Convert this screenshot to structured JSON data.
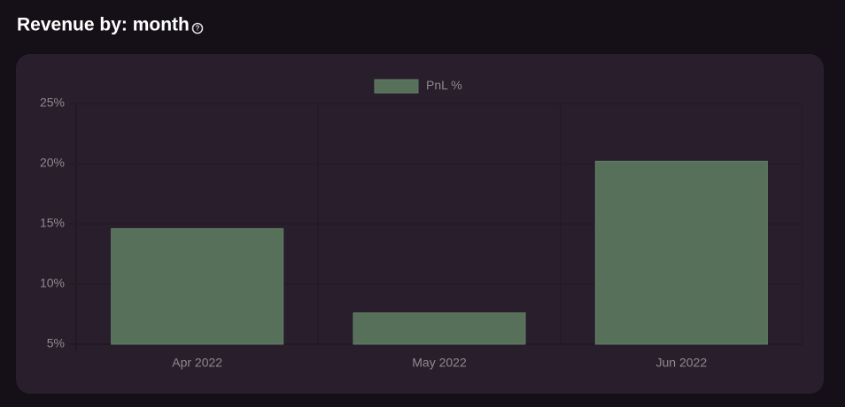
{
  "chart_data": {
    "type": "bar",
    "title": "Revenue by: month",
    "categories": [
      "Apr 2022",
      "May 2022",
      "Jun 2022"
    ],
    "series": [
      {
        "name": "PnL %",
        "color": "#56705a",
        "values": [
          14.6,
          7.6,
          20.2
        ]
      }
    ],
    "ylim": [
      5,
      25
    ],
    "yticks": [
      {
        "value": 5,
        "label": "5%"
      },
      {
        "value": 10,
        "label": "10%"
      },
      {
        "value": 15,
        "label": "15%"
      },
      {
        "value": 20,
        "label": "20%"
      },
      {
        "value": 25,
        "label": "25%"
      }
    ],
    "grid": true
  }
}
